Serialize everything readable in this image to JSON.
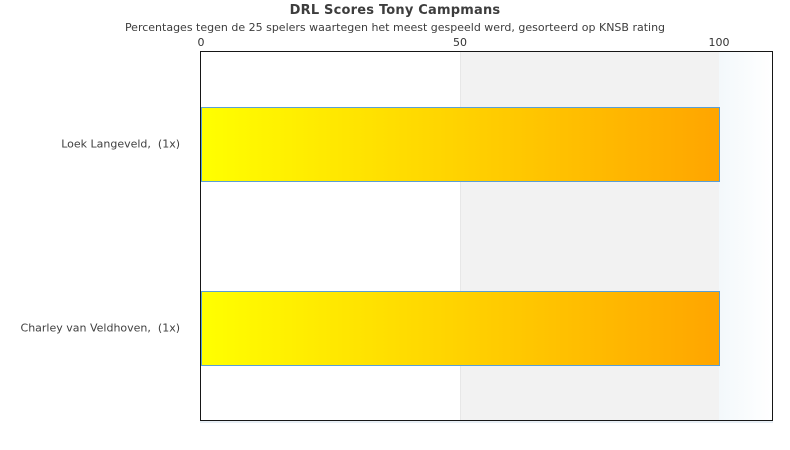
{
  "chart_data": {
    "type": "bar",
    "orientation": "horizontal",
    "title": "DRL Scores Tony Campmans",
    "subtitle": "Percentages tegen de 25 spelers waartegen het meest gespeeld werd, gesorteerd op KNSB rating",
    "categories": [
      "Loek Langeveld,  (1x)",
      "Charley van Veldhoven,  (1x)"
    ],
    "values": [
      100,
      100
    ],
    "xlabel": "",
    "ylabel": "",
    "xlim": [
      0,
      110
    ],
    "xticks": [
      0,
      50,
      100
    ],
    "axis_position": "top",
    "grid": false,
    "legend_position": "none",
    "shaded_band": {
      "from": 50,
      "to": 100,
      "color": "#f2f2f2"
    },
    "colors": {
      "bar_gradient_start": "#ffff00",
      "bar_gradient_end": "#ffa500",
      "bar_border": "#5a9fd6",
      "plot_border": "#161616",
      "text": "#3d3d3d",
      "tick_text": "#333333",
      "overflow_gradient_start": "#f3f8fb",
      "overflow_gradient_end": "#ffffff"
    }
  }
}
